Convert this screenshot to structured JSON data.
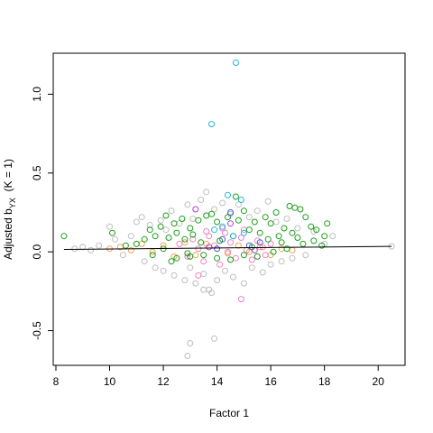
{
  "chart_data": {
    "type": "scatter",
    "title": "",
    "xlabel": "Factor 1",
    "ylabel_main": "Adjusted b",
    "ylabel_sub": "YX",
    "ylabel_tail": "  (K = 1)",
    "xlim": [
      7.9,
      21.0
    ],
    "ylim": [
      -0.72,
      1.26
    ],
    "x_ticks": [
      8,
      10,
      12,
      14,
      16,
      18,
      20
    ],
    "y_ticks": [
      -0.5,
      0.0,
      0.5,
      1.0
    ],
    "x_tick_labels": [
      "8",
      "10",
      "12",
      "14",
      "16",
      "18",
      "20"
    ],
    "y_tick_labels": [
      "-0.5",
      "0.0",
      "0.5",
      "1.0"
    ],
    "grid": false,
    "legend": "none",
    "marker": "open-circle",
    "colors": {
      "gray": "#BEBEBE",
      "green": "#1A9E1A",
      "pink": "#F080C0",
      "orange": "#F5A050",
      "cyan": "#20B8D8",
      "blue": "#4060E0",
      "purple": "#B040E0",
      "trend": "#000000"
    },
    "trend_line": {
      "x": [
        8.3,
        20.5
      ],
      "y": [
        0.015,
        0.035
      ]
    },
    "series": [
      {
        "color": "gray",
        "points": [
          [
            8.7,
            0.02
          ],
          [
            9.0,
            0.03
          ],
          [
            9.3,
            0.01
          ],
          [
            9.6,
            0.04
          ],
          [
            10.0,
            0.16
          ],
          [
            10.2,
            0.08
          ],
          [
            10.5,
            -0.02
          ],
          [
            10.8,
            0.1
          ],
          [
            11.0,
            0.19
          ],
          [
            11.2,
            0.22
          ],
          [
            11.3,
            -0.06
          ],
          [
            11.5,
            0.17
          ],
          [
            11.7,
            -0.1
          ],
          [
            11.9,
            0.2
          ],
          [
            12.0,
            -0.12
          ],
          [
            12.1,
            0.14
          ],
          [
            12.3,
            0.26
          ],
          [
            12.4,
            -0.15
          ],
          [
            12.6,
            0.18
          ],
          [
            12.8,
            -0.18
          ],
          [
            12.9,
            0.3
          ],
          [
            13.0,
            -0.1
          ],
          [
            13.1,
            0.21
          ],
          [
            13.2,
            -0.2
          ],
          [
            13.4,
            0.33
          ],
          [
            13.5,
            -0.14
          ],
          [
            13.6,
            0.38
          ],
          [
            13.7,
            -0.24
          ],
          [
            13.9,
            0.27
          ],
          [
            14.0,
            -0.18
          ],
          [
            14.2,
            0.31
          ],
          [
            14.3,
            -0.12
          ],
          [
            14.5,
            0.24
          ],
          [
            14.6,
            -0.16
          ],
          [
            14.8,
            0.3
          ],
          [
            15.0,
            -0.2
          ],
          [
            15.2,
            0.22
          ],
          [
            15.3,
            -0.1
          ],
          [
            15.5,
            0.26
          ],
          [
            15.7,
            -0.13
          ],
          [
            15.9,
            0.32
          ],
          [
            16.0,
            -0.08
          ],
          [
            16.2,
            0.19
          ],
          [
            16.4,
            -0.06
          ],
          [
            16.6,
            0.21
          ],
          [
            16.8,
            -0.04
          ],
          [
            17.0,
            0.15
          ],
          [
            17.3,
            -0.02
          ],
          [
            17.6,
            0.13
          ],
          [
            18.0,
            0.05
          ],
          [
            18.3,
            0.1
          ],
          [
            20.5,
            0.035
          ],
          [
            13.0,
            -0.58
          ],
          [
            12.9,
            -0.66
          ],
          [
            13.9,
            -0.55
          ],
          [
            13.5,
            -0.24
          ],
          [
            13.8,
            -0.26
          ]
        ]
      },
      {
        "color": "orange",
        "points": [
          [
            10.0,
            0.02
          ],
          [
            10.4,
            0.03
          ],
          [
            10.8,
            0.01
          ],
          [
            11.2,
            0.05
          ],
          [
            11.6,
            0.0
          ],
          [
            12.0,
            0.04
          ],
          [
            12.4,
            -0.03
          ],
          [
            12.8,
            0.06
          ],
          [
            13.2,
            -0.02
          ],
          [
            13.6,
            0.05
          ],
          [
            14.0,
            0.02
          ],
          [
            14.4,
            -0.01
          ],
          [
            14.8,
            0.04
          ],
          [
            15.2,
            0.0
          ],
          [
            15.6,
            0.03
          ],
          [
            16.0,
            -0.02
          ],
          [
            16.4,
            0.02
          ],
          [
            16.8,
            0.01
          ]
        ]
      },
      {
        "color": "pink",
        "points": [
          [
            12.6,
            0.05
          ],
          [
            12.9,
            -0.03
          ],
          [
            13.1,
            0.08
          ],
          [
            13.3,
            0.02
          ],
          [
            13.5,
            -0.06
          ],
          [
            13.7,
            0.1
          ],
          [
            13.9,
            0.04
          ],
          [
            14.1,
            -0.08
          ],
          [
            14.3,
            0.12
          ],
          [
            14.5,
            0.06
          ],
          [
            14.7,
            -0.04
          ],
          [
            14.9,
            0.09
          ],
          [
            15.1,
            0.01
          ],
          [
            15.3,
            -0.05
          ],
          [
            15.5,
            0.07
          ],
          [
            15.7,
            0.03
          ],
          [
            14.9,
            -0.3
          ],
          [
            13.3,
            -0.15
          ],
          [
            14.2,
            0.15
          ],
          [
            15.0,
            0.14
          ],
          [
            13.6,
            0.13
          ],
          [
            16.0,
            0.05
          ],
          [
            15.8,
            -0.02
          ],
          [
            14.4,
            0.0
          ]
        ]
      },
      {
        "color": "green",
        "points": [
          [
            8.3,
            0.1
          ],
          [
            10.1,
            0.12
          ],
          [
            10.6,
            0.04
          ],
          [
            11.0,
            0.05
          ],
          [
            11.3,
            0.08
          ],
          [
            11.5,
            0.14
          ],
          [
            11.7,
            0.1
          ],
          [
            11.9,
            0.16
          ],
          [
            12.1,
            0.23
          ],
          [
            12.2,
            0.09
          ],
          [
            12.4,
            0.18
          ],
          [
            12.5,
            0.12
          ],
          [
            12.7,
            0.21
          ],
          [
            12.8,
            0.08
          ],
          [
            13.0,
            0.15
          ],
          [
            13.1,
            0.11
          ],
          [
            13.3,
            0.2
          ],
          [
            13.4,
            0.06
          ],
          [
            13.6,
            0.23
          ],
          [
            13.8,
            0.24
          ],
          [
            14.0,
            0.19
          ],
          [
            14.1,
            0.07
          ],
          [
            14.4,
            0.22
          ],
          [
            14.6,
            0.1
          ],
          [
            14.7,
            0.35
          ],
          [
            14.8,
            0.2
          ],
          [
            15.0,
            0.26
          ],
          [
            15.2,
            0.14
          ],
          [
            15.4,
            0.19
          ],
          [
            15.6,
            0.12
          ],
          [
            15.8,
            0.22
          ],
          [
            15.9,
            0.08
          ],
          [
            16.0,
            0.18
          ],
          [
            16.2,
            0.25
          ],
          [
            16.3,
            0.1
          ],
          [
            16.5,
            0.15
          ],
          [
            16.7,
            0.29
          ],
          [
            16.8,
            0.12
          ],
          [
            16.9,
            0.28
          ],
          [
            17.1,
            0.27
          ],
          [
            17.3,
            0.22
          ],
          [
            17.5,
            0.16
          ],
          [
            17.7,
            0.14
          ],
          [
            18.0,
            0.1
          ],
          [
            18.1,
            0.18
          ],
          [
            17.9,
            0.04
          ],
          [
            17.2,
            0.05
          ],
          [
            16.6,
            0.02
          ],
          [
            16.1,
            0.0
          ],
          [
            15.5,
            -0.03
          ],
          [
            15.0,
            -0.02
          ],
          [
            14.5,
            -0.05
          ],
          [
            14.0,
            -0.04
          ],
          [
            13.5,
            -0.02
          ],
          [
            13.0,
            -0.03
          ],
          [
            12.5,
            -0.04
          ],
          [
            12.0,
            0.02
          ],
          [
            11.6,
            -0.02
          ],
          [
            12.3,
            -0.06
          ],
          [
            12.9,
            -0.01
          ],
          [
            15.3,
            0.03
          ],
          [
            16.4,
            0.06
          ],
          [
            17.0,
            0.09
          ],
          [
            17.6,
            0.07
          ]
        ]
      },
      {
        "color": "cyan",
        "points": [
          [
            14.7,
            1.2
          ],
          [
            13.8,
            0.81
          ],
          [
            14.9,
            0.33
          ],
          [
            14.4,
            0.36
          ],
          [
            14.2,
            0.16
          ],
          [
            13.9,
            0.14
          ],
          [
            15.0,
            0.12
          ],
          [
            14.6,
            0.1
          ]
        ]
      },
      {
        "color": "blue",
        "points": [
          [
            14.5,
            0.25
          ],
          [
            14.2,
            0.08
          ],
          [
            15.2,
            0.04
          ],
          [
            14.0,
            0.02
          ],
          [
            15.6,
            0.06
          ]
        ]
      },
      {
        "color": "purple",
        "points": [
          [
            13.2,
            0.27
          ],
          [
            14.5,
            0.18
          ],
          [
            13.7,
            0.03
          ],
          [
            15.4,
            0.01
          ]
        ]
      }
    ]
  }
}
